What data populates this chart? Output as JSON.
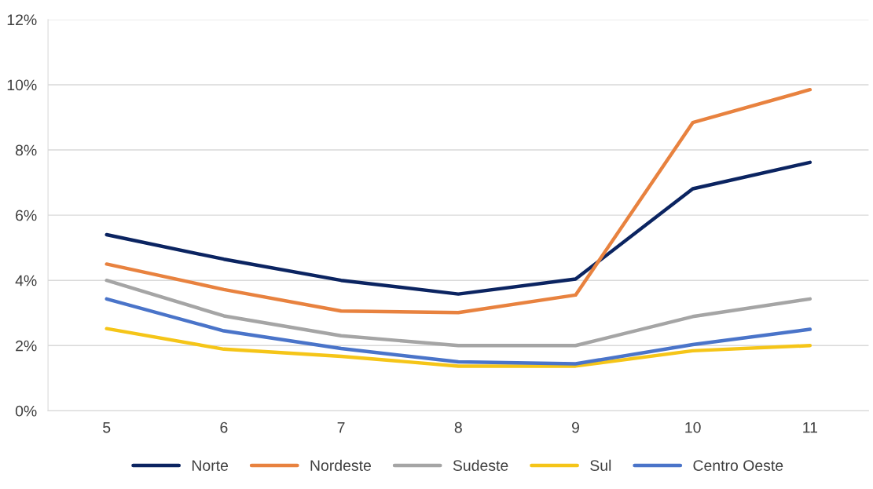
{
  "chart_data": {
    "type": "line",
    "categories": [
      "5",
      "6",
      "7",
      "8",
      "9",
      "10",
      "11"
    ],
    "series": [
      {
        "name": "Norte",
        "color": "#0b2461",
        "values": [
          5.4,
          4.65,
          4.0,
          3.58,
          4.04,
          6.81,
          7.62
        ]
      },
      {
        "name": "Nordeste",
        "color": "#e8823f",
        "values": [
          4.5,
          3.72,
          3.06,
          3.01,
          3.55,
          8.84,
          9.85
        ]
      },
      {
        "name": "Sudeste",
        "color": "#a5a5a5",
        "values": [
          4.0,
          2.91,
          2.3,
          2.0,
          2.0,
          2.89,
          3.43
        ]
      },
      {
        "name": "Sul",
        "color": "#f5c518",
        "values": [
          2.52,
          1.89,
          1.67,
          1.37,
          1.37,
          1.84,
          2.0
        ]
      },
      {
        "name": "Centro Oeste",
        "color": "#4a74c9",
        "values": [
          3.43,
          2.45,
          1.91,
          1.5,
          1.44,
          2.03,
          2.5
        ]
      }
    ],
    "ylim": [
      0,
      12
    ],
    "yticks": [
      {
        "value": 0,
        "label": "0%"
      },
      {
        "value": 2,
        "label": "2%"
      },
      {
        "value": 4,
        "label": "4%"
      },
      {
        "value": 6,
        "label": "6%"
      },
      {
        "value": 8,
        "label": "8%"
      },
      {
        "value": 10,
        "label": "10%"
      },
      {
        "value": 12,
        "label": "12%"
      }
    ],
    "grid": "y",
    "legend": "bottom",
    "marker": "none",
    "line_style": "solid"
  }
}
